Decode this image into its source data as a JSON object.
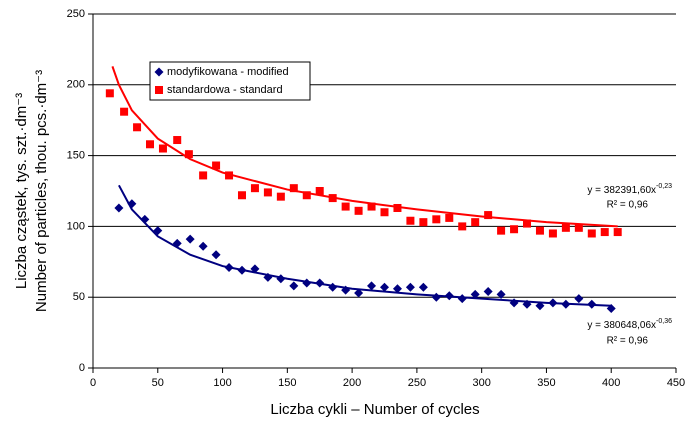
{
  "chart_data": {
    "type": "scatter",
    "xlabel": "Liczba cykli – Number of cycles",
    "ylabel": [
      "Liczba cząstek, tys. szt.·dm⁻³",
      "Number of particles, thou. pcs.·dm⁻³"
    ],
    "xlim": [
      0,
      450
    ],
    "xticks": [
      0,
      50,
      100,
      150,
      200,
      250,
      300,
      350,
      400,
      450
    ],
    "ylim": [
      0,
      250
    ],
    "yticks": [
      0,
      50,
      100,
      150,
      200,
      250
    ],
    "grid": true,
    "legend": "upper left",
    "series": [
      {
        "name": "modyfikowana - modified",
        "color": "#000080",
        "marker": "diamond",
        "x": [
          20,
          30,
          40,
          50,
          65,
          75,
          85,
          95,
          105,
          115,
          125,
          135,
          145,
          155,
          165,
          175,
          185,
          195,
          205,
          215,
          225,
          235,
          245,
          255,
          265,
          275,
          285,
          295,
          305,
          315,
          325,
          335,
          345,
          355,
          365,
          375,
          385,
          400
        ],
        "values": [
          113,
          116,
          105,
          97,
          88,
          91,
          86,
          80,
          71,
          69,
          70,
          64,
          63,
          58,
          60,
          60,
          57,
          55,
          53,
          58,
          57,
          56,
          57,
          57,
          50,
          51,
          49,
          52,
          54,
          52,
          46,
          45,
          44,
          46,
          45,
          49,
          45,
          42
        ]
      },
      {
        "name": "standardowa - standard",
        "color": "#ff0000",
        "marker": "square",
        "x": [
          13,
          24,
          34,
          44,
          54,
          65,
          74,
          85,
          95,
          105,
          115,
          125,
          135,
          145,
          155,
          165,
          175,
          185,
          195,
          205,
          215,
          225,
          235,
          245,
          255,
          265,
          275,
          285,
          295,
          305,
          315,
          325,
          335,
          345,
          355,
          365,
          375,
          385,
          395,
          405
        ],
        "values": [
          194,
          181,
          170,
          158,
          155,
          161,
          151,
          136,
          143,
          136,
          122,
          127,
          124,
          121,
          127,
          122,
          125,
          120,
          114,
          111,
          114,
          110,
          113,
          104,
          103,
          105,
          106,
          100,
          103,
          108,
          97,
          98,
          102,
          97,
          95,
          99,
          99,
          95,
          96,
          96
        ]
      }
    ],
    "trendlines": [
      {
        "color": "#000080",
        "x": [
          20,
          30,
          50,
          75,
          100,
          150,
          200,
          250,
          300,
          350,
          400
        ],
        "values": [
          129,
          112,
          93,
          80,
          72,
          63,
          56,
          52,
          49,
          46,
          44
        ]
      },
      {
        "color": "#ff0000",
        "x": [
          15,
          20,
          30,
          50,
          75,
          100,
          150,
          200,
          250,
          300,
          350,
          405
        ],
        "values": [
          213,
          200,
          182,
          162,
          147.5,
          138,
          126,
          118,
          112,
          107,
          103,
          100
        ]
      }
    ],
    "annotations": [
      {
        "text": "y = 382391,60x",
        "exponent": "-0,23",
        "r2": "R² = 0,96"
      },
      {
        "text": "y = 380648,06x",
        "exponent": "-0,36",
        "r2": "R² = 0,96"
      }
    ]
  }
}
